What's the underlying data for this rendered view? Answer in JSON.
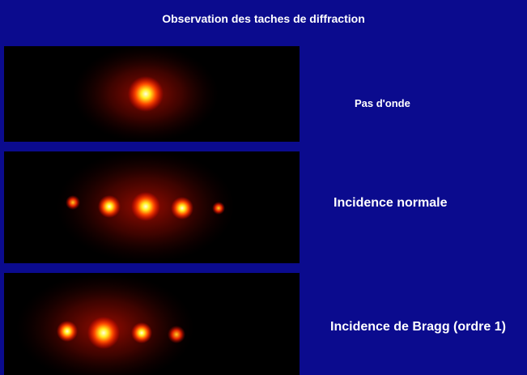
{
  "title": "Observation des taches de diffraction",
  "panels": [
    {
      "label": "Pas d'onde"
    },
    {
      "label": "Incidence normale"
    },
    {
      "label": "Incidence de Bragg (ordre 1)"
    }
  ]
}
